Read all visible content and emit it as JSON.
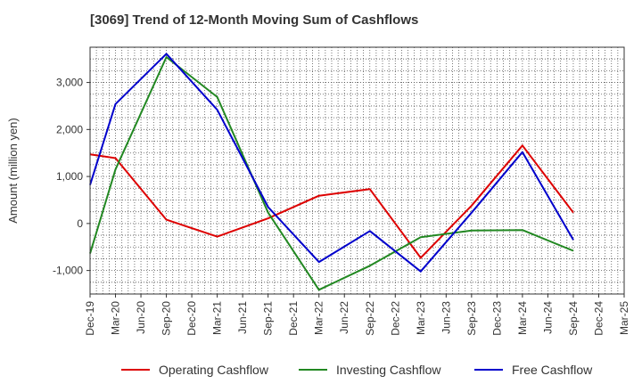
{
  "chart_data": {
    "type": "line",
    "title": "[3069]  Trend of 12-Month Moving Sum of Cashflows",
    "xlabel": "",
    "ylabel": "Amount (million yen)",
    "categories": [
      "Dec-19",
      "Mar-20",
      "Jun-20",
      "Sep-20",
      "Dec-20",
      "Mar-21",
      "Jun-21",
      "Sep-21",
      "Dec-21",
      "Mar-22",
      "Jun-22",
      "Sep-22",
      "Dec-22",
      "Mar-23",
      "Jun-23",
      "Sep-23",
      "Dec-23",
      "Mar-24",
      "Jun-24",
      "Sep-24",
      "Dec-24",
      "Mar-25"
    ],
    "ylim": [
      -1500,
      3750
    ],
    "yticks": [
      -1000,
      0,
      1000,
      2000,
      3000
    ],
    "ytick_labels": [
      "-1,000",
      "0",
      "1,000",
      "2,000",
      "3,000"
    ],
    "grid": true,
    "legend_position": "bottom",
    "series": [
      {
        "name": "Operating Cashflow",
        "color": "#dd0000",
        "points": [
          [
            "Dec-19",
            1470
          ],
          [
            "Mar-20",
            1390
          ],
          [
            "Sep-20",
            80
          ],
          [
            "Mar-21",
            -280
          ],
          [
            "Sep-21",
            110
          ],
          [
            "Mar-22",
            590
          ],
          [
            "Sep-22",
            730
          ],
          [
            "Mar-23",
            -730
          ],
          [
            "Sep-23",
            380
          ],
          [
            "Mar-24",
            1660
          ],
          [
            "Sep-24",
            230
          ]
        ]
      },
      {
        "name": "Investing Cashflow",
        "color": "#228822",
        "points": [
          [
            "Dec-19",
            -640
          ],
          [
            "Mar-20",
            1150
          ],
          [
            "Sep-20",
            3540
          ],
          [
            "Mar-21",
            2690
          ],
          [
            "Sep-21",
            230
          ],
          [
            "Mar-22",
            -1410
          ],
          [
            "Sep-22",
            -900
          ],
          [
            "Mar-23",
            -290
          ],
          [
            "Sep-23",
            -150
          ],
          [
            "Mar-24",
            -140
          ],
          [
            "Sep-24",
            -580
          ]
        ]
      },
      {
        "name": "Free Cashflow",
        "color": "#0000cc",
        "points": [
          [
            "Dec-19",
            820
          ],
          [
            "Mar-20",
            2540
          ],
          [
            "Sep-20",
            3610
          ],
          [
            "Mar-21",
            2420
          ],
          [
            "Sep-21",
            350
          ],
          [
            "Mar-22",
            -820
          ],
          [
            "Sep-22",
            -160
          ],
          [
            "Mar-23",
            -1020
          ],
          [
            "Sep-23",
            230
          ],
          [
            "Mar-24",
            1520
          ],
          [
            "Sep-24",
            -350
          ]
        ]
      }
    ]
  }
}
